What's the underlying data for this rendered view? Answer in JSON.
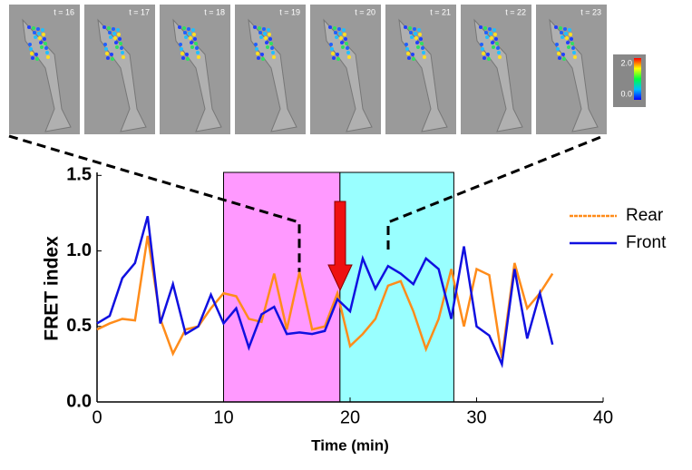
{
  "chart_data": {
    "type": "line",
    "x_label": "Time (min)",
    "y_label": "FRET index",
    "x": [
      0,
      1,
      2,
      3,
      4,
      5,
      6,
      7,
      8,
      9,
      10,
      11,
      12,
      13,
      14,
      15,
      16,
      17,
      18,
      19,
      20,
      21,
      22,
      23,
      24,
      25,
      26,
      27,
      28,
      29,
      30,
      31,
      32,
      33,
      34,
      35,
      36
    ],
    "series": [
      {
        "name": "Rear",
        "color": "#ff8c1a",
        "values": [
          0.48,
          0.52,
          0.55,
          0.54,
          1.1,
          0.55,
          0.32,
          0.48,
          0.5,
          0.62,
          0.72,
          0.7,
          0.55,
          0.53,
          0.85,
          0.48,
          0.86,
          0.48,
          0.5,
          0.72,
          0.37,
          0.45,
          0.55,
          0.77,
          0.8,
          0.6,
          0.35,
          0.55,
          0.88,
          0.5,
          0.88,
          0.84,
          0.29,
          0.92,
          0.62,
          0.72,
          0.85
        ]
      },
      {
        "name": "Front",
        "color": "#1010e0",
        "values": [
          0.52,
          0.57,
          0.82,
          0.92,
          1.23,
          0.52,
          0.78,
          0.45,
          0.5,
          0.71,
          0.52,
          0.62,
          0.36,
          0.58,
          0.63,
          0.45,
          0.46,
          0.45,
          0.47,
          0.68,
          0.6,
          0.95,
          0.75,
          0.9,
          0.85,
          0.78,
          0.95,
          0.88,
          0.55,
          1.03,
          0.5,
          0.44,
          0.25,
          0.88,
          0.42,
          0.72,
          0.38
        ]
      }
    ],
    "xlim": [
      0,
      40
    ],
    "xticks": [
      0,
      10,
      20,
      30,
      40
    ],
    "ylim": [
      0,
      1.52
    ],
    "yticks": [
      {
        "value": 0,
        "label": "0.0"
      },
      0.5,
      {
        "value": 1,
        "label": "1.0"
      },
      1.5
    ],
    "shaded_regions": [
      {
        "xlim": [
          10,
          19.2
        ],
        "color": "#ff99ff"
      },
      {
        "xlim": [
          19.2,
          28.2
        ],
        "color": "#99ffff"
      }
    ],
    "panel_labels": [
      "t = 16",
      "t = 17",
      "t = 18",
      "t = 19",
      "t = 20",
      "t = 21",
      "t = 22",
      "t = 23"
    ],
    "colorbar_labels": [
      "2.0",
      "0.0"
    ]
  }
}
